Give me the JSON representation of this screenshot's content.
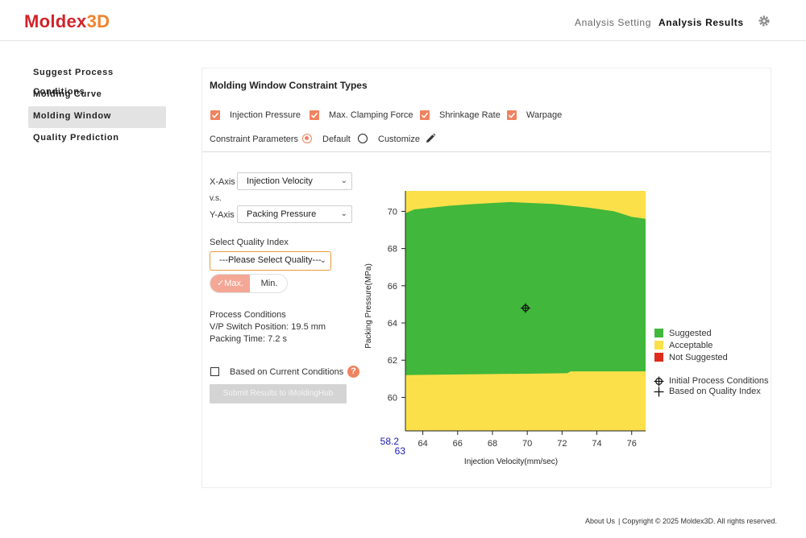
{
  "header": {
    "logo_part1": "Moldex",
    "logo_part2": "3D",
    "nav_setting": "Analysis Setting",
    "nav_results": "Analysis Results",
    "gear_icon": "gear-icon"
  },
  "sidebar": {
    "items": [
      {
        "label": "Suggest Process Conditions",
        "active": false
      },
      {
        "label": "Molding Curve",
        "active": false
      },
      {
        "label": "Molding Window",
        "active": true
      },
      {
        "label": "Quality Prediction",
        "active": false
      }
    ]
  },
  "panel": {
    "title": "Molding Window Constraint Types",
    "constraints": [
      {
        "label": "Injection Pressure",
        "checked": true
      },
      {
        "label": "Max. Clamping Force",
        "checked": true
      },
      {
        "label": "Shrinkage Rate",
        "checked": true
      },
      {
        "label": "Warpage",
        "checked": true
      }
    ],
    "params_label": "Constraint Parameters",
    "param_default": "Default",
    "param_customize": "Customize",
    "xaxis_label": "X-Axis",
    "xaxis_value": "Injection Velocity",
    "vs_label": "v.s.",
    "yaxis_label": "Y-Axis",
    "yaxis_value": "Packing Pressure",
    "quality_label": "Select Quality Index",
    "quality_value": "---Please Select Quality---",
    "max_label": "Max.",
    "min_label": "Min.",
    "process_title": "Process Conditions",
    "vp_switch": "V/P Switch Position: 19.5 mm",
    "packing_time": "Packing Time: 7.2 s",
    "based_label": "Based on Current Conditions",
    "help_icon": "?",
    "submit_label": "Submit Results to iMoldingHub"
  },
  "chart_data": {
    "type": "heatmap",
    "xlabel": "Injection Velocity(mm/sec)",
    "ylabel": "Packing Pressure(MPa)",
    "xlim": [
      63,
      76.8
    ],
    "ylim": [
      58.2,
      71.1
    ],
    "xticks": [
      64,
      66,
      68,
      70,
      72,
      74,
      76
    ],
    "yticks": [
      60,
      62,
      64,
      66,
      68,
      70
    ],
    "x_corner_label": "63",
    "y_corner_label": "58.2",
    "regions": {
      "acceptable_color": "#fce04a",
      "suggested_color": "#41b73b",
      "suggested_bottom_boundary": [
        [
          63,
          61.2
        ],
        [
          72.3,
          61.3
        ],
        [
          72.5,
          61.4
        ],
        [
          76.8,
          61.4
        ]
      ],
      "suggested_top_boundary": [
        [
          63,
          69.9
        ],
        [
          63.5,
          70.1
        ],
        [
          65.5,
          70.3
        ],
        [
          67,
          70.4
        ],
        [
          69,
          70.5
        ],
        [
          71.5,
          70.4
        ],
        [
          72.5,
          70.3
        ],
        [
          73.5,
          70.2
        ],
        [
          75,
          70.0
        ],
        [
          76,
          69.7
        ],
        [
          76.8,
          69.6
        ]
      ]
    },
    "initial_point": {
      "x": 69.9,
      "y": 64.8
    },
    "legend": [
      {
        "label": "Suggested",
        "color": "#41b73b"
      },
      {
        "label": "Acceptable",
        "color": "#fce04a"
      },
      {
        "label": "Not Suggested",
        "color": "#e02a1c"
      }
    ],
    "marker_legend": [
      {
        "label": "Initial Process Conditions",
        "icon": "crosshair-circle-icon"
      },
      {
        "label": "Based on Quality Index",
        "icon": "plus-icon"
      }
    ]
  },
  "footer": {
    "about": "About Us",
    "copyright": "| Copyright © 2025 Moldex3D. All rights reserved."
  }
}
